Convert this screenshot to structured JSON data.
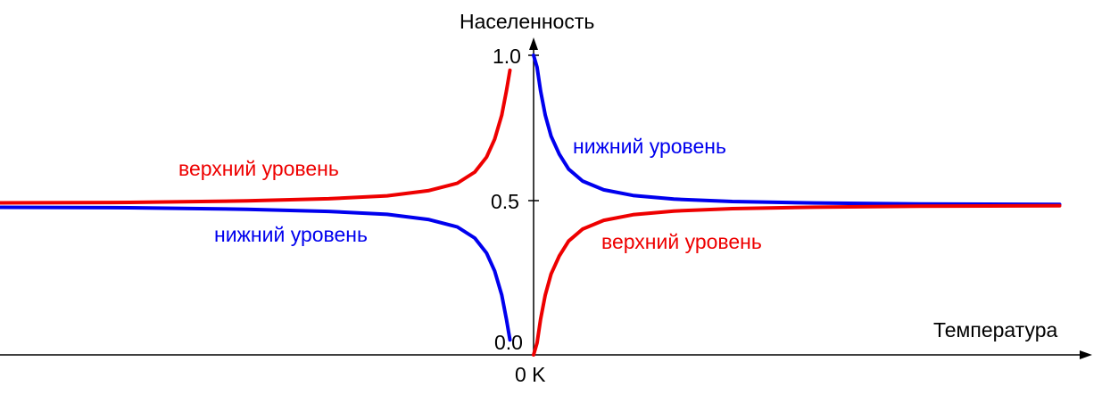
{
  "chart_data": {
    "type": "line",
    "ylabel": "Населенность",
    "xlabel": "Температура",
    "origin_label": "0 K",
    "yticks": [
      "0.0",
      "0.5",
      "1.0"
    ],
    "ylim": [
      0,
      1
    ],
    "grid": false,
    "legend": "none",
    "colors": {
      "upper": "#ee0000",
      "lower": "#0000ee",
      "axis": "#000000"
    },
    "note": "Populations of lower and upper levels versus temperature; right half is positive temperature, left half is negative temperature.",
    "series": [
      {
        "key": "upper_negative_T",
        "color": "#ee0000",
        "x": [
          -0.05,
          -0.08,
          -0.12,
          -0.18,
          -0.25,
          -0.35,
          -0.5,
          -0.75,
          -1.1,
          -1.6,
          -2.3,
          -3.3,
          -4.5
        ],
        "y": [
          0.95,
          0.88,
          0.8,
          0.72,
          0.66,
          0.61,
          0.573,
          0.548,
          0.531,
          0.521,
          0.514,
          0.509,
          0.507
        ]
      },
      {
        "key": "lower_negative_T",
        "color": "#0000ee",
        "x": [
          -0.05,
          -0.08,
          -0.12,
          -0.18,
          -0.25,
          -0.35,
          -0.5,
          -0.75,
          -1.1,
          -1.6,
          -2.3,
          -3.3,
          -4.5
        ],
        "y": [
          0.05,
          0.12,
          0.2,
          0.28,
          0.34,
          0.39,
          0.427,
          0.452,
          0.469,
          0.479,
          0.486,
          0.491,
          0.493
        ]
      },
      {
        "key": "lower_positive_T",
        "color": "#0000ee",
        "x": [
          0.0,
          0.03,
          0.06,
          0.1,
          0.15,
          0.22,
          0.3,
          0.42,
          0.6,
          0.85,
          1.2,
          1.7,
          2.4,
          3.3,
          4.5
        ],
        "y": [
          1.0,
          0.96,
          0.88,
          0.8,
          0.73,
          0.67,
          0.62,
          0.58,
          0.551,
          0.532,
          0.52,
          0.512,
          0.507,
          0.504,
          0.502
        ]
      },
      {
        "key": "upper_positive_T",
        "color": "#ee0000",
        "x": [
          0.0,
          0.03,
          0.06,
          0.1,
          0.15,
          0.22,
          0.3,
          0.42,
          0.6,
          0.85,
          1.2,
          1.7,
          2.4,
          3.3,
          4.5
        ],
        "y": [
          0.0,
          0.04,
          0.12,
          0.2,
          0.27,
          0.33,
          0.38,
          0.42,
          0.449,
          0.468,
          0.48,
          0.488,
          0.493,
          0.496,
          0.498
        ]
      }
    ],
    "annotations": [
      {
        "key": "upper_left",
        "text": "верхний уровень",
        "color": "#ee0000"
      },
      {
        "key": "lower_left",
        "text": "нижний уровень",
        "color": "#0000ee"
      },
      {
        "key": "lower_right",
        "text": "нижний уровень",
        "color": "#0000ee"
      },
      {
        "key": "upper_right",
        "text": "верхний уровень",
        "color": "#ee0000"
      }
    ]
  }
}
